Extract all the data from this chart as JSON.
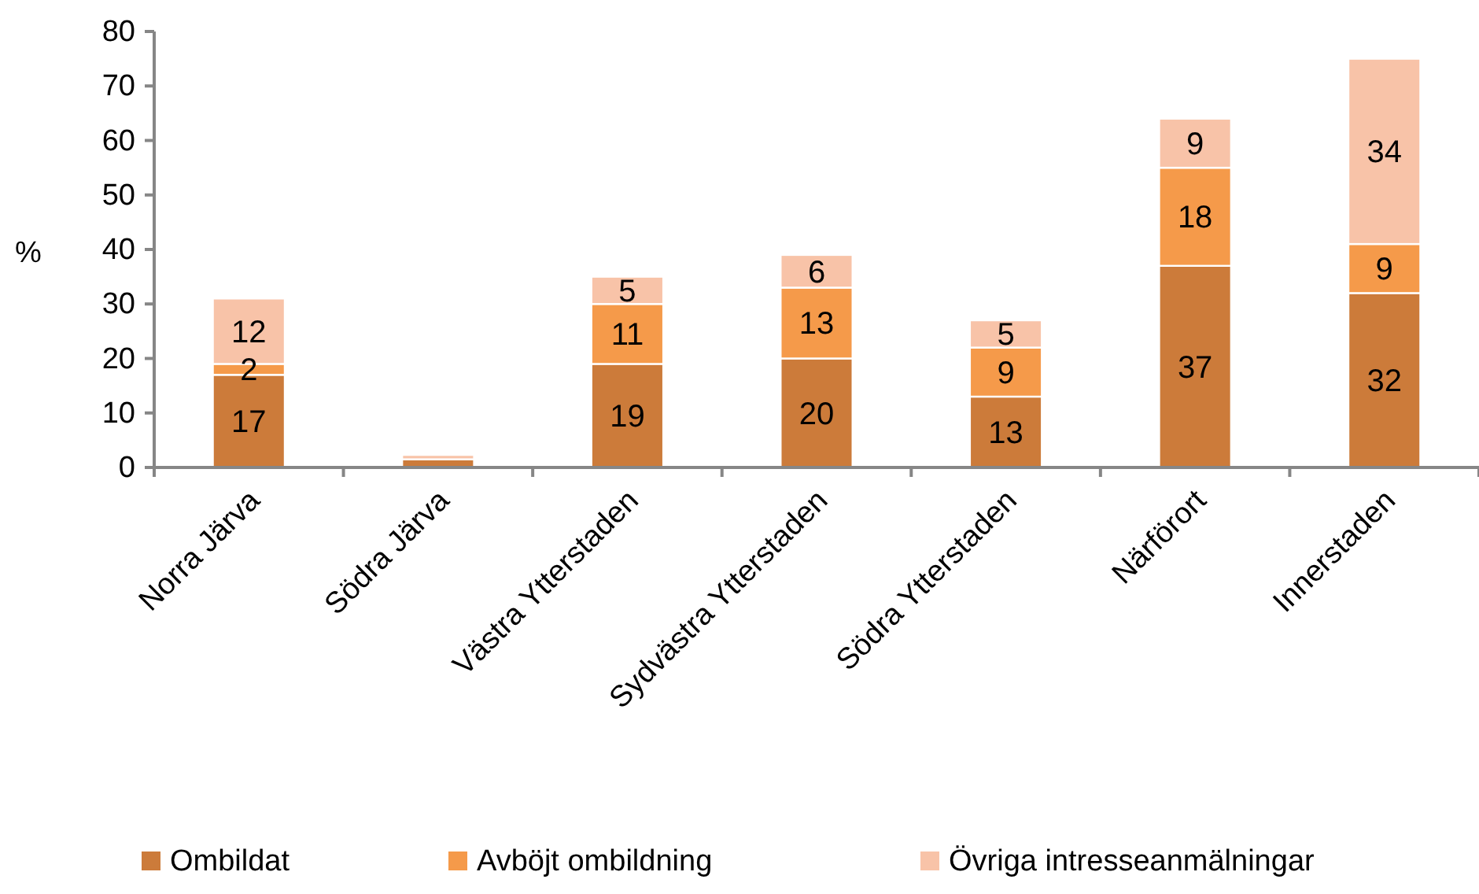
{
  "chart_data": {
    "type": "bar",
    "stacked": true,
    "ylabel": "%",
    "categories": [
      "Norra Järva",
      "Södra Järva",
      "Västra Ytterstaden",
      "Sydvästra Ytterstaden",
      "Södra Ytterstaden",
      "Närförort",
      "Innerstaden"
    ],
    "series": [
      {
        "name": "Ombildat",
        "color": "#cc7b3a",
        "values": [
          17,
          1.5,
          19,
          20,
          13,
          37,
          32
        ],
        "value_labels": [
          "17",
          null,
          "19",
          "20",
          "13",
          "37",
          "32"
        ]
      },
      {
        "name": "Avböjt ombildning",
        "color": "#f59a4a",
        "values": [
          2,
          null,
          11,
          13,
          9,
          18,
          9
        ],
        "value_labels": [
          "2",
          null,
          "11",
          "13",
          "9",
          "18",
          "9"
        ]
      },
      {
        "name": "Övriga intresseanmälningar",
        "color": "#f8c3a8",
        "values": [
          12,
          0.8,
          5,
          6,
          5,
          9,
          34
        ],
        "value_labels": [
          "12",
          null,
          "5",
          "6",
          "5",
          "9",
          "34"
        ]
      }
    ],
    "ylim": [
      0,
      80
    ],
    "yticks": [
      0,
      10,
      20,
      30,
      40,
      50,
      60,
      70,
      80
    ],
    "legend": "bottom"
  }
}
